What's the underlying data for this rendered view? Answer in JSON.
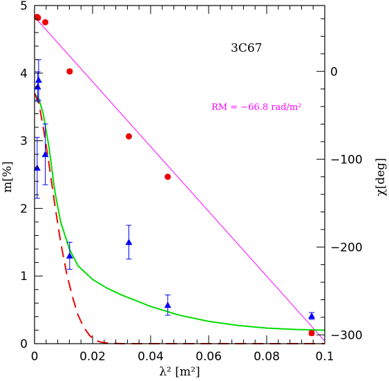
{
  "chart_data": {
    "type": "scatter",
    "xlabel": "λ² [m²]",
    "ylabel": "m[%]",
    "y2label": "χ[deg]",
    "xlim": [
      0,
      0.1
    ],
    "ylim": [
      0,
      5
    ],
    "y2lim": [
      -310,
      75
    ],
    "xticks": [
      0,
      0.02,
      0.04,
      0.06,
      0.08,
      0.1
    ],
    "xtick_labels": [
      "0",
      "0.02",
      "0.04",
      "0.06",
      "0.08",
      "0.1"
    ],
    "yticks": [
      0,
      1,
      2,
      3,
      4,
      5
    ],
    "ytick_labels": [
      "0",
      "1",
      "2",
      "3",
      "4",
      "5"
    ],
    "y2ticks": [
      0,
      -100,
      -200,
      -300
    ],
    "y2tick_labels": [
      "0",
      "−100",
      "−200",
      "−300"
    ],
    "annotations": {
      "source": "3C67",
      "rm": "RM = −66.8 rad/m²"
    },
    "series": [
      {
        "kind": "points",
        "axis": "left",
        "marker": "triangle",
        "color": "#0000ff",
        "x": [
          0.0009,
          0.0011,
          0.0014,
          0.0037,
          0.0121,
          0.0325,
          0.0459,
          0.0955
        ],
        "y": [
          2.6,
          3.8,
          3.9,
          2.8,
          1.3,
          1.5,
          0.57,
          0.41
        ],
        "err": [
          0.45,
          0.22,
          0.3,
          0.45,
          0.2,
          0.25,
          0.15,
          0.05
        ]
      },
      {
        "kind": "points",
        "axis": "right",
        "marker": "circle",
        "color": "#ee0000",
        "x": [
          0.0009,
          0.0012,
          0.0037,
          0.0121,
          0.0325,
          0.0459,
          0.0955
        ],
        "y": [
          62,
          61,
          56,
          0,
          -74,
          -120,
          -298
        ],
        "err": [
          1.5,
          1.5,
          1.5,
          2,
          1.5,
          1.5,
          2.5
        ]
      },
      {
        "kind": "line",
        "axis": "right",
        "style": "solid",
        "color": "#ff00ff",
        "x": [
          0,
          0.1
        ],
        "y": [
          62,
          -307
        ]
      },
      {
        "kind": "line",
        "axis": "left",
        "style": "solid",
        "color": "#00dd00",
        "x": [
          0,
          0.0015,
          0.003,
          0.005,
          0.007,
          0.009,
          0.012,
          0.015,
          0.02,
          0.025,
          0.03,
          0.04,
          0.05,
          0.06,
          0.07,
          0.08,
          0.09,
          0.1
        ],
        "y": [
          3.7,
          3.62,
          3.4,
          2.9,
          2.25,
          1.8,
          1.4,
          1.15,
          0.95,
          0.82,
          0.72,
          0.55,
          0.42,
          0.33,
          0.27,
          0.23,
          0.21,
          0.2
        ]
      },
      {
        "kind": "line",
        "axis": "left",
        "style": "dashed",
        "color": "#ee0000",
        "x": [
          0,
          0.0015,
          0.003,
          0.005,
          0.007,
          0.009,
          0.011,
          0.013,
          0.015,
          0.017,
          0.019,
          0.021,
          0.023,
          0.026,
          0.03,
          0.04,
          0.06,
          0.08,
          0.1
        ],
        "y": [
          3.7,
          3.55,
          3.2,
          2.65,
          2.05,
          1.5,
          1.05,
          0.7,
          0.42,
          0.24,
          0.12,
          0.05,
          0.02,
          0.005,
          0,
          0,
          0,
          0,
          0
        ]
      }
    ]
  }
}
